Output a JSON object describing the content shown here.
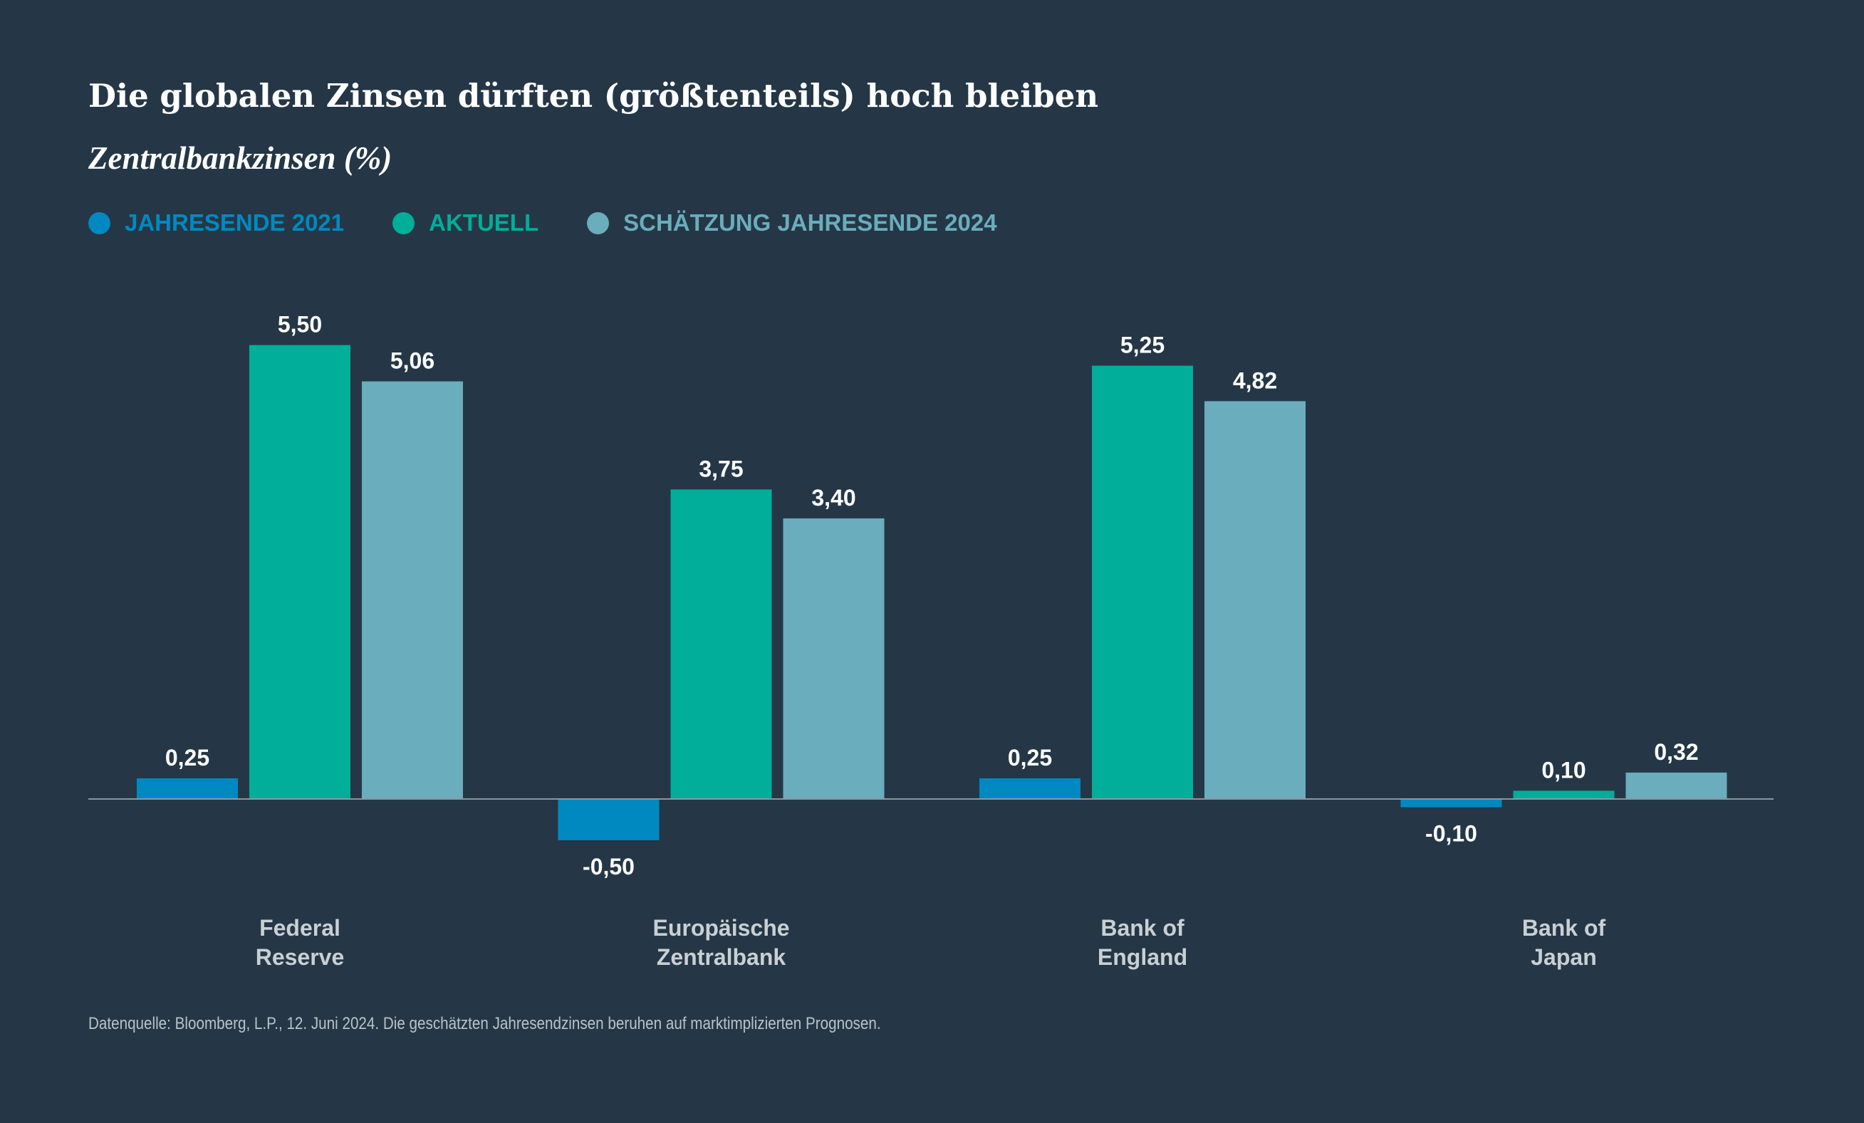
{
  "chart_data": {
    "type": "bar",
    "title": "Die globalen Zinsen dürften (größtenteils) hoch bleiben",
    "subtitle": "Zentralbankzinsen (%)",
    "categories": [
      [
        "Federal",
        "Reserve"
      ],
      [
        "Europäische",
        "Zentralbank"
      ],
      [
        "Bank of",
        "England"
      ],
      [
        "Bank of",
        "Japan"
      ]
    ],
    "series": [
      {
        "name": "JAHRESENDE 2021",
        "color": "#0089c0",
        "values": [
          0.25,
          -0.5,
          0.25,
          -0.1
        ],
        "labels": [
          "0,25",
          "-0,50",
          "0,25",
          "-0,10"
        ]
      },
      {
        "name": "AKTUELL",
        "color": "#00ae99",
        "values": [
          5.5,
          3.75,
          5.25,
          0.1
        ],
        "labels": [
          "5,50",
          "3,75",
          "5,25",
          "0,10"
        ]
      },
      {
        "name": "SCHÄTZUNG JAHRESENDE 2024",
        "color": "#6aadbd",
        "values": [
          5.06,
          3.4,
          4.82,
          0.32
        ],
        "labels": [
          "5,06",
          "3,40",
          "4,82",
          "0,32"
        ]
      }
    ],
    "ylim": [
      -0.5,
      5.5
    ],
    "xlabel": "",
    "ylabel": "",
    "grid": false,
    "legend_position": "top-left",
    "footnote": "Datenquelle: Bloomberg, L.P., 12. Juni 2024. Die geschätzten Jahresendzinsen beruhen auf marktimplizierten Prognosen."
  },
  "colors": {
    "background": "#253746",
    "axis": "#8a97a0",
    "value_label": "#ffffff",
    "category_label": "#c9cfd3"
  }
}
